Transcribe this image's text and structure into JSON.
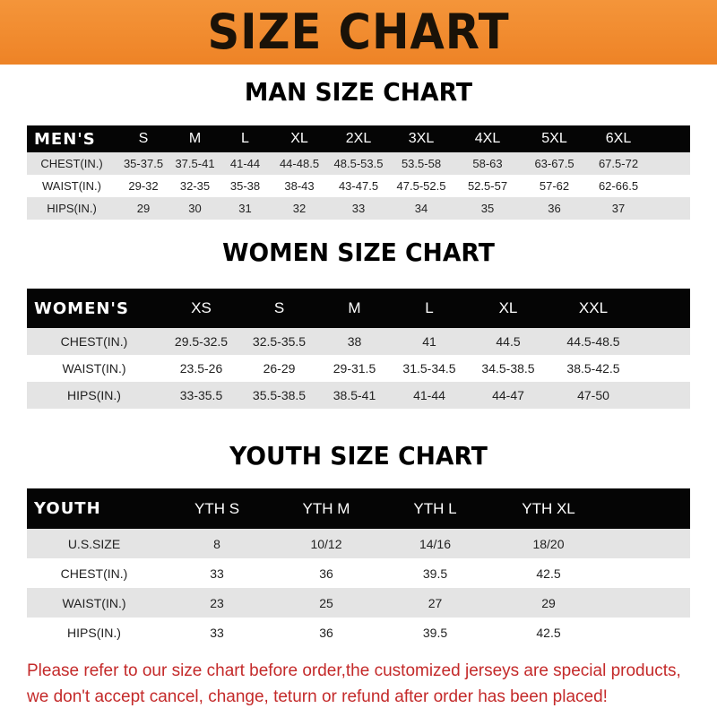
{
  "header": {
    "title": "SIZE CHART"
  },
  "men": {
    "title": "MAN SIZE CHART",
    "label": "MEN'S",
    "sizes": [
      "S",
      "M",
      "L",
      "XL",
      "2XL",
      "3XL",
      "4XL",
      "5XL",
      "6XL"
    ],
    "rows": [
      {
        "label": "CHEST(IN.)",
        "values": [
          "35-37.5",
          "37.5-41",
          "41-44",
          "44-48.5",
          "48.5-53.5",
          "53.5-58",
          "58-63",
          "63-67.5",
          "67.5-72"
        ]
      },
      {
        "label": "WAIST(IN.)",
        "values": [
          "29-32",
          "32-35",
          "35-38",
          "38-43",
          "43-47.5",
          "47.5-52.5",
          "52.5-57",
          "57-62",
          "62-66.5"
        ]
      },
      {
        "label": "HIPS(IN.)",
        "values": [
          "29",
          "30",
          "31",
          "32",
          "33",
          "34",
          "35",
          "36",
          "37"
        ]
      }
    ]
  },
  "women": {
    "title": "WOMEN SIZE CHART",
    "label": "WOMEN'S",
    "sizes": [
      "XS",
      "S",
      "M",
      "L",
      "XL",
      "XXL"
    ],
    "rows": [
      {
        "label": "CHEST(IN.)",
        "values": [
          "29.5-32.5",
          "32.5-35.5",
          "38",
          "41",
          "44.5",
          "44.5-48.5"
        ]
      },
      {
        "label": "WAIST(IN.)",
        "values": [
          "23.5-26",
          "26-29",
          "29-31.5",
          "31.5-34.5",
          "34.5-38.5",
          "38.5-42.5"
        ]
      },
      {
        "label": "HIPS(IN.)",
        "values": [
          "33-35.5",
          "35.5-38.5",
          "38.5-41",
          "41-44",
          "44-47",
          "47-50"
        ]
      }
    ]
  },
  "youth": {
    "title": "YOUTH SIZE CHART",
    "label": "YOUTH",
    "sizes": [
      "YTH S",
      "YTH M",
      "YTH L",
      "YTH XL"
    ],
    "rows": [
      {
        "label": "U.S.SIZE",
        "values": [
          "8",
          "10/12",
          "14/16",
          "18/20"
        ]
      },
      {
        "label": "CHEST(IN.)",
        "values": [
          "33",
          "36",
          "39.5",
          "42.5"
        ]
      },
      {
        "label": "WAIST(IN.)",
        "values": [
          "23",
          "25",
          "27",
          "29"
        ]
      },
      {
        "label": "HIPS(IN.)",
        "values": [
          "33",
          "36",
          "39.5",
          "42.5"
        ]
      }
    ]
  },
  "note": {
    "line1": "Please refer to our size chart before order,the customized jerseys are special products,",
    "line2": "we don't accept cancel, change, teturn or refund after order has been placed!"
  },
  "colors": {
    "banner": "#f08a2c",
    "header_row": "#050505",
    "stripe": "#e4e4e4",
    "note": "#c42a2a"
  }
}
